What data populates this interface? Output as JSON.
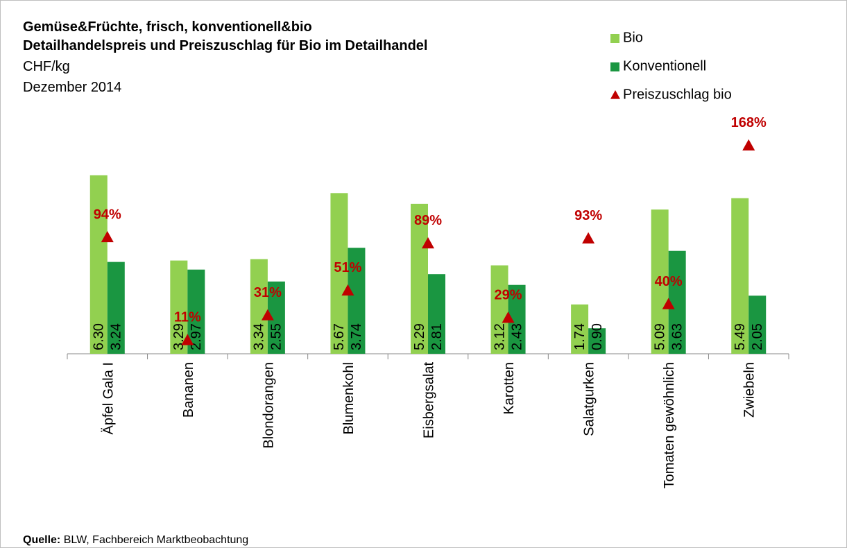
{
  "chart_data": {
    "type": "bar",
    "title": "Gemüse&Früchte, frisch, konventionell&bio",
    "subtitle": "Detailhandelspreis und Preiszuschlag für Bio im Detailhandel",
    "unit": "CHF/kg",
    "date": "Dezember 2014",
    "categories": [
      "Äpfel Gala I",
      "Bananen",
      "Blondorangen",
      "Blumenkohl",
      "Eisbergsalat",
      "Karotten",
      "Salatgurken",
      "Tomaten gewöhnlich",
      "Zwiebeln"
    ],
    "series": [
      {
        "name": "Bio",
        "color": "#92d050",
        "values": [
          6.3,
          3.29,
          3.34,
          5.67,
          5.29,
          3.12,
          1.74,
          5.09,
          5.49
        ],
        "value_labels": [
          "6.30",
          "3.29",
          "3.34",
          "5.67",
          "5.29",
          "3.12",
          "1.74",
          "5.09",
          "5.49"
        ]
      },
      {
        "name": "Konventionell",
        "color": "#1a9641",
        "values": [
          3.24,
          2.97,
          2.55,
          3.74,
          2.81,
          2.43,
          0.9,
          3.63,
          2.05
        ],
        "value_labels": [
          "3.24",
          "2.97",
          "2.55",
          "3.74",
          "2.81",
          "2.43",
          "0.90",
          "3.63",
          "2.05"
        ]
      },
      {
        "name": "Preiszuschlag bio",
        "color": "#c00000",
        "axis": "y2",
        "marker": "triangle",
        "values": [
          94,
          11,
          31,
          51,
          89,
          29,
          93,
          40,
          168
        ],
        "value_labels": [
          "94%",
          "11%",
          "31%",
          "51%",
          "89%",
          "29%",
          "93%",
          "40%",
          "168%"
        ]
      }
    ],
    "ylim": [
      0,
      7
    ],
    "y2lim": [
      0,
      160
    ],
    "legend": "top-right",
    "source_label": "Quelle:",
    "source": "BLW, Fachbereich Marktbeobachtung"
  }
}
